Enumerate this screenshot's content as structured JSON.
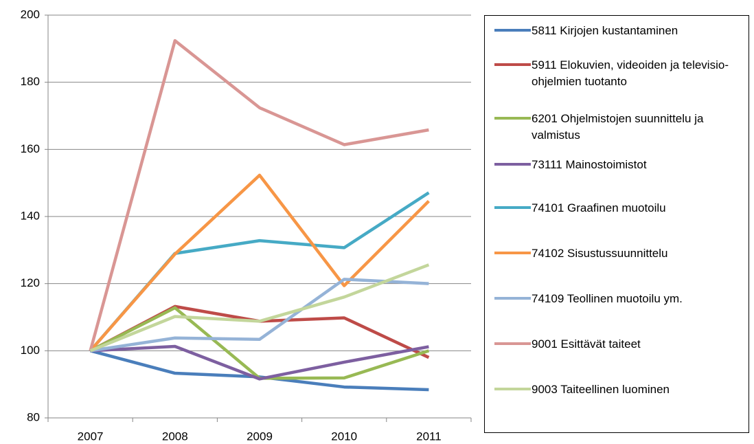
{
  "chart_data": {
    "type": "line",
    "categories": [
      "2007",
      "2008",
      "2009",
      "2010",
      "2011"
    ],
    "ylim": [
      80,
      200
    ],
    "yticks": [
      80,
      100,
      120,
      140,
      160,
      180,
      200
    ],
    "grid": true,
    "legend": "right",
    "series": [
      {
        "name": "5811 Kirjojen kustantaminen",
        "color": "#4a7ebb",
        "values": [
          100,
          93.3,
          92.2,
          89.2,
          88.4
        ]
      },
      {
        "name": "5911 Elokuvien, videoiden ja televisio-ohjelmien tuotanto",
        "color": "#be4b48",
        "values": [
          100,
          113.2,
          108.8,
          109.8,
          98
        ]
      },
      {
        "name": "6201 Ohjelmistojen suunnittelu ja valmistus",
        "color": "#98b954",
        "values": [
          100,
          112.8,
          91.8,
          91.9,
          100
        ]
      },
      {
        "name": "73111 Mainostoimistot",
        "color": "#7d5fa0",
        "values": [
          100,
          101.3,
          91.6,
          96.6,
          101.2
        ]
      },
      {
        "name": "74101 Graafinen muotoilu",
        "color": "#46aac5",
        "values": [
          100,
          129,
          132.8,
          130.7,
          147.1
        ]
      },
      {
        "name": "74102 Sisustussuunnittelu",
        "color": "#f79646",
        "values": [
          100,
          128.8,
          152.3,
          119.4,
          144.6
        ]
      },
      {
        "name": "74109 Teollinen muotoilu ym.",
        "color": "#95b3d7",
        "values": [
          100,
          103.8,
          103.4,
          121.3,
          120
        ]
      },
      {
        "name": "9001 Esittävät taiteet",
        "color": "#d99694",
        "values": [
          100,
          192.4,
          172.4,
          161.4,
          165.8
        ]
      },
      {
        "name": "9003 Taiteellinen luominen",
        "color": "#c3d69b",
        "values": [
          100,
          110.2,
          108.8,
          116,
          125.6
        ]
      }
    ]
  }
}
